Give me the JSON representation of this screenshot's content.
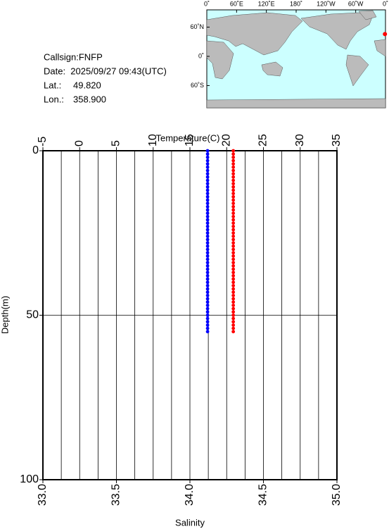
{
  "station": {
    "callsign": "Callsign:FNFP",
    "date": "Date:  2025/09/27 09:43(UTC)",
    "lat": {
      "label": "Lat.:",
      "value": 49.82,
      "value_label": "49.820"
    },
    "lon": {
      "label": "Lon.:",
      "value": 358.9,
      "value_label": "358.900"
    }
  },
  "map": {
    "lon_ticks": [
      {
        "value": 0,
        "label": "0˚"
      },
      {
        "value": 60,
        "label": "60˚E"
      },
      {
        "value": 120,
        "label": "120˚E"
      },
      {
        "value": 180,
        "label": "180˚"
      },
      {
        "value": 240,
        "label": "120˚W"
      },
      {
        "value": 300,
        "label": "60˚W"
      },
      {
        "value": 360,
        "label": "0˚"
      }
    ],
    "lat_ticks": [
      {
        "value": 60,
        "label": "60˚N"
      },
      {
        "value": 0,
        "label": "0˚"
      },
      {
        "value": -60,
        "label": "60˚S"
      }
    ],
    "station_color": "#ff0000"
  },
  "chart_data": {
    "type": "profile",
    "xlabel": "Temperature(C)",
    "x2label": "Salinity",
    "ylabel": "Depth(m)",
    "xlim": [
      -5,
      35
    ],
    "xticks": [
      -5,
      0,
      5,
      10,
      15,
      20,
      25,
      30,
      35
    ],
    "xgrid": [
      -2.5,
      0,
      2.5,
      5,
      7.5,
      10,
      12.5,
      15,
      17.5,
      20,
      22.5,
      25,
      27.5,
      30,
      32.5
    ],
    "x2lim": [
      33,
      35
    ],
    "x2ticks": [
      {
        "value": 33,
        "label": "33.0"
      },
      {
        "value": 33.5,
        "label": "33.5"
      },
      {
        "value": 34,
        "label": "34.0"
      },
      {
        "value": 34.5,
        "label": "34.5"
      },
      {
        "value": 35,
        "label": "35.0"
      }
    ],
    "ylim": [
      0,
      100
    ],
    "yticks": [
      0,
      50,
      100
    ],
    "ygrid": [
      50
    ],
    "y": [
      0,
      1,
      2,
      3,
      4,
      5,
      6,
      7,
      8,
      9,
      10,
      11,
      12,
      13,
      14,
      15,
      16,
      17,
      18,
      19,
      20,
      21,
      22,
      23,
      24,
      25,
      26,
      27,
      28,
      29,
      30,
      31,
      32,
      33,
      34,
      35,
      36,
      37,
      38,
      39,
      40,
      41,
      42,
      43,
      44,
      45,
      46,
      47,
      48,
      49,
      50,
      51,
      52,
      53,
      54,
      55
    ],
    "series": [
      {
        "axis": "x",
        "color": "#ff0000",
        "values": [
          20.9,
          20.9,
          20.9,
          20.9,
          20.9,
          20.9,
          20.9,
          20.9,
          20.9,
          20.9,
          20.9,
          20.9,
          20.9,
          20.9,
          20.9,
          20.9,
          20.9,
          20.9,
          20.9,
          20.9,
          20.9,
          20.9,
          20.9,
          20.9,
          20.9,
          20.9,
          20.9,
          20.9,
          20.9,
          20.9,
          20.9,
          20.9,
          20.9,
          20.9,
          20.9,
          20.9,
          20.9,
          20.9,
          20.9,
          20.9,
          20.9,
          20.9,
          20.9,
          20.9,
          20.9,
          20.9,
          20.9,
          20.9,
          20.9,
          20.9,
          20.9,
          20.9,
          20.9,
          20.9,
          20.9,
          20.9
        ]
      },
      {
        "axis": "x2",
        "color": "#0000ff",
        "values": [
          34.12,
          34.12,
          34.12,
          34.12,
          34.12,
          34.12,
          34.12,
          34.12,
          34.12,
          34.12,
          34.12,
          34.12,
          34.12,
          34.12,
          34.12,
          34.12,
          34.12,
          34.12,
          34.12,
          34.12,
          34.12,
          34.12,
          34.12,
          34.12,
          34.12,
          34.12,
          34.12,
          34.12,
          34.12,
          34.12,
          34.12,
          34.12,
          34.12,
          34.12,
          34.12,
          34.12,
          34.12,
          34.12,
          34.12,
          34.12,
          34.12,
          34.12,
          34.12,
          34.12,
          34.12,
          34.12,
          34.12,
          34.12,
          34.12,
          34.12,
          34.12,
          34.12,
          34.12,
          34.12,
          34.12,
          34.12
        ]
      }
    ]
  }
}
